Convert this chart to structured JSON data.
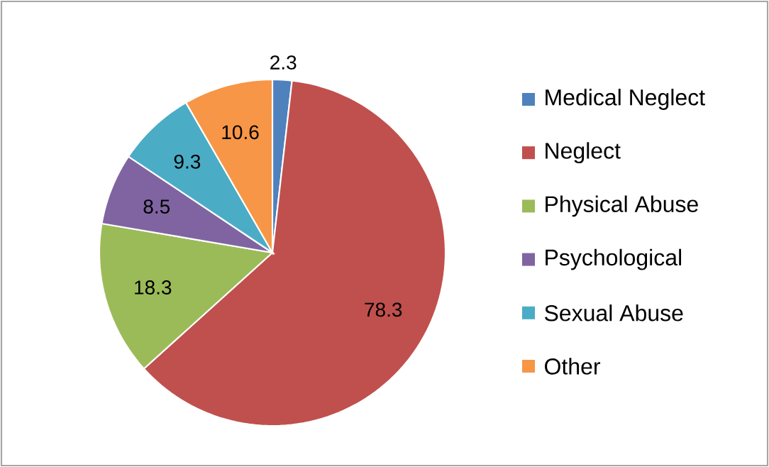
{
  "chart_data": {
    "type": "pie",
    "categories": [
      "Medical Neglect",
      "Neglect",
      "Physical Abuse",
      "Psychological",
      "Sexual Abuse",
      "Other"
    ],
    "values": [
      2.3,
      78.3,
      18.3,
      8.5,
      9.3,
      10.6
    ],
    "colors": [
      "#4f81bd",
      "#c0504d",
      "#9bbb59",
      "#8064a2",
      "#4bacc6",
      "#f79646"
    ],
    "data_labels": true,
    "legend": "right"
  }
}
